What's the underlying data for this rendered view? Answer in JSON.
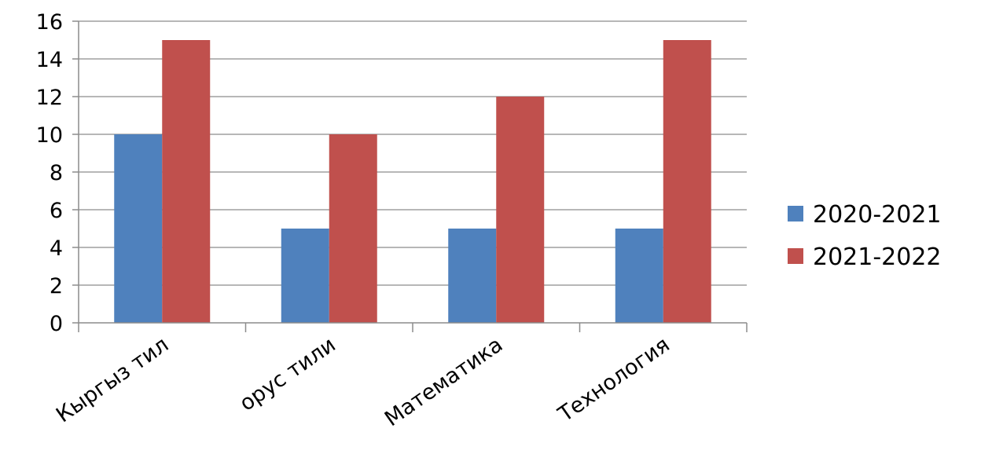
{
  "chart_data": {
    "type": "bar",
    "categories": [
      "Кыргыз тил",
      "орус тили",
      "Математика",
      "Технология"
    ],
    "series": [
      {
        "name": "2020-2021",
        "values": [
          10,
          5,
          5,
          5
        ],
        "color": "#4f81bd"
      },
      {
        "name": "2021-2022",
        "values": [
          15,
          10,
          12,
          15
        ],
        "color": "#c0504d"
      }
    ],
    "ylim": [
      0,
      16
    ],
    "yticks": [
      0,
      2,
      4,
      6,
      8,
      10,
      12,
      14,
      16
    ],
    "grid": true,
    "legend_position": "right"
  }
}
